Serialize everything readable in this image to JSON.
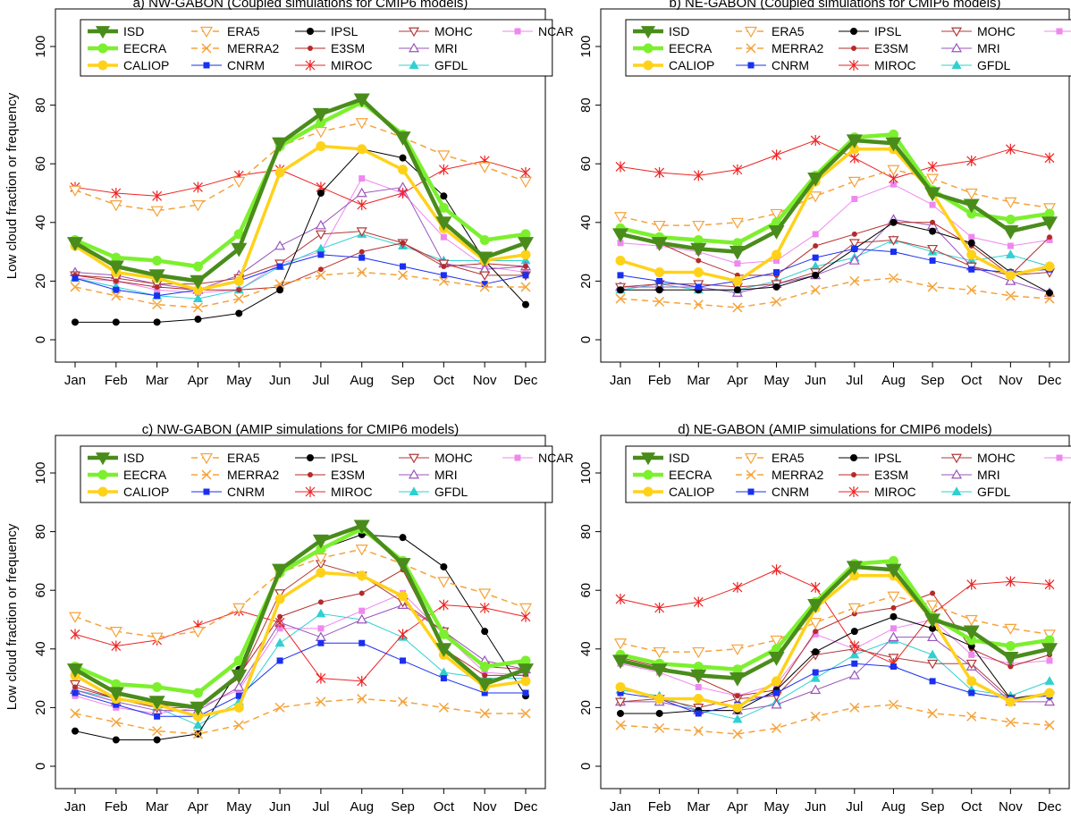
{
  "ylabel": "Low cloud fraction or frequency",
  "months": [
    "Jan",
    "Feb",
    "Mar",
    "Apr",
    "May",
    "Jun",
    "Jul",
    "Aug",
    "Sep",
    "Oct",
    "Nov",
    "Dec"
  ],
  "yticks": [
    0,
    20,
    40,
    60,
    80,
    100
  ],
  "ylim": [
    0,
    100
  ],
  "styles": {
    "ISD": {
      "color": "#4a8c1c",
      "dash": "",
      "width": 4.5,
      "marker": "tri-down-filled",
      "msize": 8
    },
    "EECRA": {
      "color": "#7cf02e",
      "dash": "",
      "width": 4.5,
      "marker": "circle",
      "msize": 5
    },
    "CALIOP": {
      "color": "#ffd21a",
      "dash": "",
      "width": 3.5,
      "marker": "circle",
      "msize": 5
    },
    "ERA5": {
      "color": "#f5a33a",
      "dash": "7,5",
      "width": 1.5,
      "marker": "tri-down-open",
      "msize": 6
    },
    "MERRA2": {
      "color": "#f5a33a",
      "dash": "7,5",
      "width": 1.5,
      "marker": "x",
      "msize": 5
    },
    "CNRM": {
      "color": "#1a2ff0",
      "dash": "",
      "width": 1,
      "marker": "square",
      "msize": 3.5
    },
    "IPSL": {
      "color": "#000000",
      "dash": "",
      "width": 1,
      "marker": "circle",
      "msize": 3.5
    },
    "E3SM": {
      "color": "#b52a2a",
      "dash": "",
      "width": 1,
      "marker": "circle",
      "msize": 2.5
    },
    "MIROC": {
      "color": "#ee2222",
      "dash": "",
      "width": 1,
      "marker": "asterisk",
      "msize": 5
    },
    "MOHC": {
      "color": "#b03a3a",
      "dash": "",
      "width": 1,
      "marker": "tri-down-open",
      "msize": 5
    },
    "MRI": {
      "color": "#9955bb",
      "dash": "",
      "width": 1,
      "marker": "tri-up-open",
      "msize": 5
    },
    "GFDL": {
      "color": "#30d0d0",
      "dash": "",
      "width": 1,
      "marker": "tri-up-filled",
      "msize": 4.5
    },
    "NCAR": {
      "color": "#ee88ee",
      "dash": "",
      "width": 1,
      "marker": "square",
      "msize": 3.5
    }
  },
  "legend_columns": [
    [
      "ISD",
      "EECRA",
      "CALIOP"
    ],
    [
      "ERA5",
      "MERRA2",
      "CNRM"
    ],
    [
      "IPSL",
      "E3SM",
      "MIROC"
    ],
    [
      "MOHC",
      "MRI",
      "GFDL"
    ],
    [
      "NCAR"
    ]
  ],
  "chart_data": [
    {
      "type": "line",
      "title": "a) NW-GABON (Coupled simulations for CMIP6 models)",
      "categories": [
        "Jan",
        "Feb",
        "Mar",
        "Apr",
        "May",
        "Jun",
        "Jul",
        "Aug",
        "Sep",
        "Oct",
        "Nov",
        "Dec"
      ],
      "ylim": [
        0,
        100
      ],
      "series": [
        {
          "name": "NCAR",
          "values": [
            21,
            20,
            17,
            16,
            17,
            26,
            30,
            55,
            50,
            35,
            25,
            23
          ]
        },
        {
          "name": "GFDL",
          "values": [
            21,
            18,
            15,
            14,
            17,
            25,
            31,
            36,
            32,
            27,
            27,
            27
          ]
        },
        {
          "name": "MRI",
          "values": [
            23,
            22,
            19,
            17,
            22,
            32,
            39,
            50,
            52,
            26,
            24,
            25
          ]
        },
        {
          "name": "MOHC",
          "values": [
            22,
            21,
            19,
            19,
            21,
            26,
            36,
            37,
            33,
            26,
            22,
            22
          ]
        },
        {
          "name": "MIROC",
          "values": [
            52,
            50,
            49,
            52,
            56,
            58,
            52,
            46,
            50,
            58,
            61,
            57
          ]
        },
        {
          "name": "E3SM",
          "values": [
            22,
            20,
            18,
            17,
            17,
            18,
            24,
            30,
            33,
            25,
            26,
            25
          ]
        },
        {
          "name": "IPSL",
          "values": [
            6,
            6,
            6,
            7,
            9,
            17,
            50,
            65,
            62,
            49,
            27,
            12
          ]
        },
        {
          "name": "CNRM",
          "values": [
            21,
            17,
            15,
            17,
            20,
            25,
            29,
            28,
            25,
            22,
            19,
            22
          ]
        },
        {
          "name": "MERRA2",
          "values": [
            18,
            15,
            12,
            11,
            14,
            19,
            22,
            23,
            22,
            20,
            18,
            18
          ]
        },
        {
          "name": "ERA5",
          "values": [
            51,
            46,
            44,
            46,
            54,
            66,
            71,
            74,
            69,
            63,
            59,
            54
          ]
        },
        {
          "name": "CALIOP",
          "values": [
            32,
            23,
            21,
            17,
            20,
            57,
            66,
            65,
            58,
            38,
            27,
            29
          ]
        },
        {
          "name": "EECRA",
          "values": [
            34,
            28,
            27,
            25,
            36,
            66,
            74,
            81,
            70,
            45,
            34,
            36
          ]
        },
        {
          "name": "ISD",
          "values": [
            33,
            25,
            22,
            20,
            31,
            67,
            77,
            82,
            69,
            40,
            28,
            33
          ]
        }
      ]
    },
    {
      "type": "line",
      "title": "b) NE-GABON (Coupled simulations for CMIP6 models)",
      "categories": [
        "Jan",
        "Feb",
        "Mar",
        "Apr",
        "May",
        "Jun",
        "Jul",
        "Aug",
        "Sep",
        "Oct",
        "Nov",
        "Dec"
      ],
      "ylim": [
        0,
        100
      ],
      "series": [
        {
          "name": "NCAR",
          "values": [
            33,
            32,
            30,
            26,
            27,
            36,
            48,
            53,
            46,
            35,
            32,
            34
          ]
        },
        {
          "name": "GFDL",
          "values": [
            17,
            19,
            17,
            17,
            20,
            25,
            28,
            34,
            30,
            27,
            29,
            25
          ]
        },
        {
          "name": "MRI",
          "values": [
            18,
            18,
            18,
            16,
            19,
            22,
            27,
            41,
            39,
            25,
            20,
            16
          ]
        },
        {
          "name": "MOHC",
          "values": [
            18,
            19,
            19,
            18,
            19,
            23,
            33,
            34,
            31,
            25,
            22,
            23
          ]
        },
        {
          "name": "MIROC",
          "values": [
            59,
            57,
            56,
            58,
            63,
            68,
            62,
            55,
            59,
            61,
            65,
            62
          ]
        },
        {
          "name": "E3SM",
          "values": [
            36,
            33,
            27,
            22,
            22,
            32,
            36,
            40,
            40,
            32,
            22,
            35
          ]
        },
        {
          "name": "IPSL",
          "values": [
            17,
            17,
            17,
            17,
            18,
            22,
            31,
            40,
            37,
            33,
            23,
            16
          ]
        },
        {
          "name": "CNRM",
          "values": [
            22,
            20,
            18,
            20,
            23,
            28,
            31,
            30,
            27,
            24,
            23,
            24
          ]
        },
        {
          "name": "MERRA2",
          "values": [
            14,
            13,
            12,
            11,
            13,
            17,
            20,
            21,
            18,
            17,
            15,
            14
          ]
        },
        {
          "name": "ERA5",
          "values": [
            42,
            39,
            39,
            40,
            43,
            49,
            54,
            58,
            55,
            50,
            47,
            45
          ]
        },
        {
          "name": "CALIOP",
          "values": [
            27,
            23,
            23,
            20,
            29,
            54,
            65,
            65,
            50,
            29,
            22,
            25
          ]
        },
        {
          "name": "EECRA",
          "values": [
            38,
            35,
            34,
            33,
            40,
            56,
            69,
            70,
            51,
            43,
            41,
            43
          ]
        },
        {
          "name": "ISD",
          "values": [
            36,
            33,
            31,
            30,
            37,
            55,
            68,
            67,
            50,
            46,
            37,
            40
          ]
        }
      ]
    },
    {
      "type": "line",
      "title": "c) NW-GABON (AMIP simulations for CMIP6 models)",
      "categories": [
        "Jan",
        "Feb",
        "Mar",
        "Apr",
        "May",
        "Jun",
        "Jul",
        "Aug",
        "Sep",
        "Oct",
        "Nov",
        "Dec"
      ],
      "ylim": [
        0,
        100
      ],
      "series": [
        {
          "name": "NCAR",
          "values": [
            24,
            20,
            18,
            20,
            26,
            47,
            47,
            53,
            59,
            45,
            32,
            31
          ]
        },
        {
          "name": "GFDL",
          "values": [
            26,
            23,
            20,
            14,
            22,
            42,
            52,
            50,
            44,
            32,
            30,
            30
          ]
        },
        {
          "name": "MRI",
          "values": [
            26,
            22,
            19,
            19,
            27,
            49,
            44,
            50,
            55,
            46,
            36,
            33
          ]
        },
        {
          "name": "MOHC",
          "values": [
            28,
            23,
            20,
            20,
            30,
            59,
            69,
            65,
            56,
            46,
            34,
            33
          ]
        },
        {
          "name": "MIROC",
          "values": [
            45,
            41,
            43,
            48,
            53,
            49,
            30,
            29,
            45,
            55,
            54,
            51
          ]
        },
        {
          "name": "E3SM",
          "values": [
            27,
            23,
            21,
            20,
            31,
            51,
            56,
            59,
            67,
            40,
            31,
            31
          ]
        },
        {
          "name": "IPSL",
          "values": [
            12,
            9,
            9,
            11,
            33,
            67,
            74,
            79,
            78,
            68,
            46,
            24
          ]
        },
        {
          "name": "CNRM",
          "values": [
            25,
            21,
            17,
            17,
            24,
            36,
            42,
            42,
            36,
            30,
            25,
            25
          ]
        },
        {
          "name": "MERRA2",
          "values": [
            18,
            15,
            12,
            11,
            14,
            20,
            22,
            23,
            22,
            20,
            18,
            18
          ]
        },
        {
          "name": "ERA5",
          "values": [
            51,
            46,
            44,
            46,
            54,
            66,
            71,
            74,
            69,
            63,
            59,
            54
          ]
        },
        {
          "name": "CALIOP",
          "values": [
            31,
            23,
            21,
            17,
            20,
            57,
            66,
            65,
            58,
            38,
            27,
            29
          ]
        },
        {
          "name": "EECRA",
          "values": [
            34,
            28,
            27,
            25,
            36,
            66,
            74,
            81,
            70,
            45,
            34,
            36
          ]
        },
        {
          "name": "ISD",
          "values": [
            33,
            25,
            22,
            20,
            31,
            67,
            77,
            82,
            69,
            40,
            28,
            33
          ]
        }
      ]
    },
    {
      "type": "line",
      "title": "d) NE-GABON (AMIP simulations for CMIP6 models)",
      "categories": [
        "Jan",
        "Feb",
        "Mar",
        "Apr",
        "May",
        "Jun",
        "Jul",
        "Aug",
        "Sep",
        "Oct",
        "Nov",
        "Dec"
      ],
      "ylim": [
        0,
        100
      ],
      "series": [
        {
          "name": "NCAR",
          "values": [
            35,
            32,
            27,
            24,
            28,
            45,
            40,
            47,
            50,
            38,
            35,
            36
          ]
        },
        {
          "name": "GFDL",
          "values": [
            26,
            24,
            19,
            16,
            22,
            30,
            38,
            43,
            38,
            26,
            24,
            29
          ]
        },
        {
          "name": "MRI",
          "values": [
            22,
            22,
            19,
            19,
            21,
            26,
            31,
            44,
            44,
            34,
            22,
            22
          ]
        },
        {
          "name": "MOHC",
          "values": [
            22,
            23,
            20,
            23,
            24,
            38,
            40,
            37,
            35,
            35,
            23,
            24
          ]
        },
        {
          "name": "MIROC",
          "values": [
            57,
            54,
            56,
            61,
            67,
            61,
            41,
            35,
            52,
            62,
            63,
            62
          ]
        },
        {
          "name": "E3SM",
          "values": [
            37,
            34,
            30,
            24,
            26,
            46,
            52,
            54,
            59,
            40,
            34,
            38
          ]
        },
        {
          "name": "IPSL",
          "values": [
            18,
            18,
            19,
            19,
            26,
            39,
            46,
            51,
            47,
            41,
            23,
            25
          ]
        },
        {
          "name": "CNRM",
          "values": [
            25,
            23,
            18,
            21,
            25,
            32,
            35,
            34,
            29,
            25,
            23,
            24
          ]
        },
        {
          "name": "MERRA2",
          "values": [
            14,
            13,
            12,
            11,
            13,
            17,
            20,
            21,
            18,
            17,
            15,
            14
          ]
        },
        {
          "name": "ERA5",
          "values": [
            42,
            39,
            39,
            40,
            43,
            49,
            54,
            58,
            55,
            50,
            47,
            45
          ]
        },
        {
          "name": "CALIOP",
          "values": [
            27,
            23,
            23,
            20,
            29,
            54,
            65,
            65,
            50,
            29,
            22,
            25
          ]
        },
        {
          "name": "EECRA",
          "values": [
            38,
            35,
            34,
            33,
            40,
            56,
            69,
            70,
            51,
            43,
            41,
            43
          ]
        },
        {
          "name": "ISD",
          "values": [
            36,
            33,
            31,
            30,
            37,
            55,
            68,
            67,
            50,
            46,
            37,
            40
          ]
        }
      ]
    }
  ]
}
